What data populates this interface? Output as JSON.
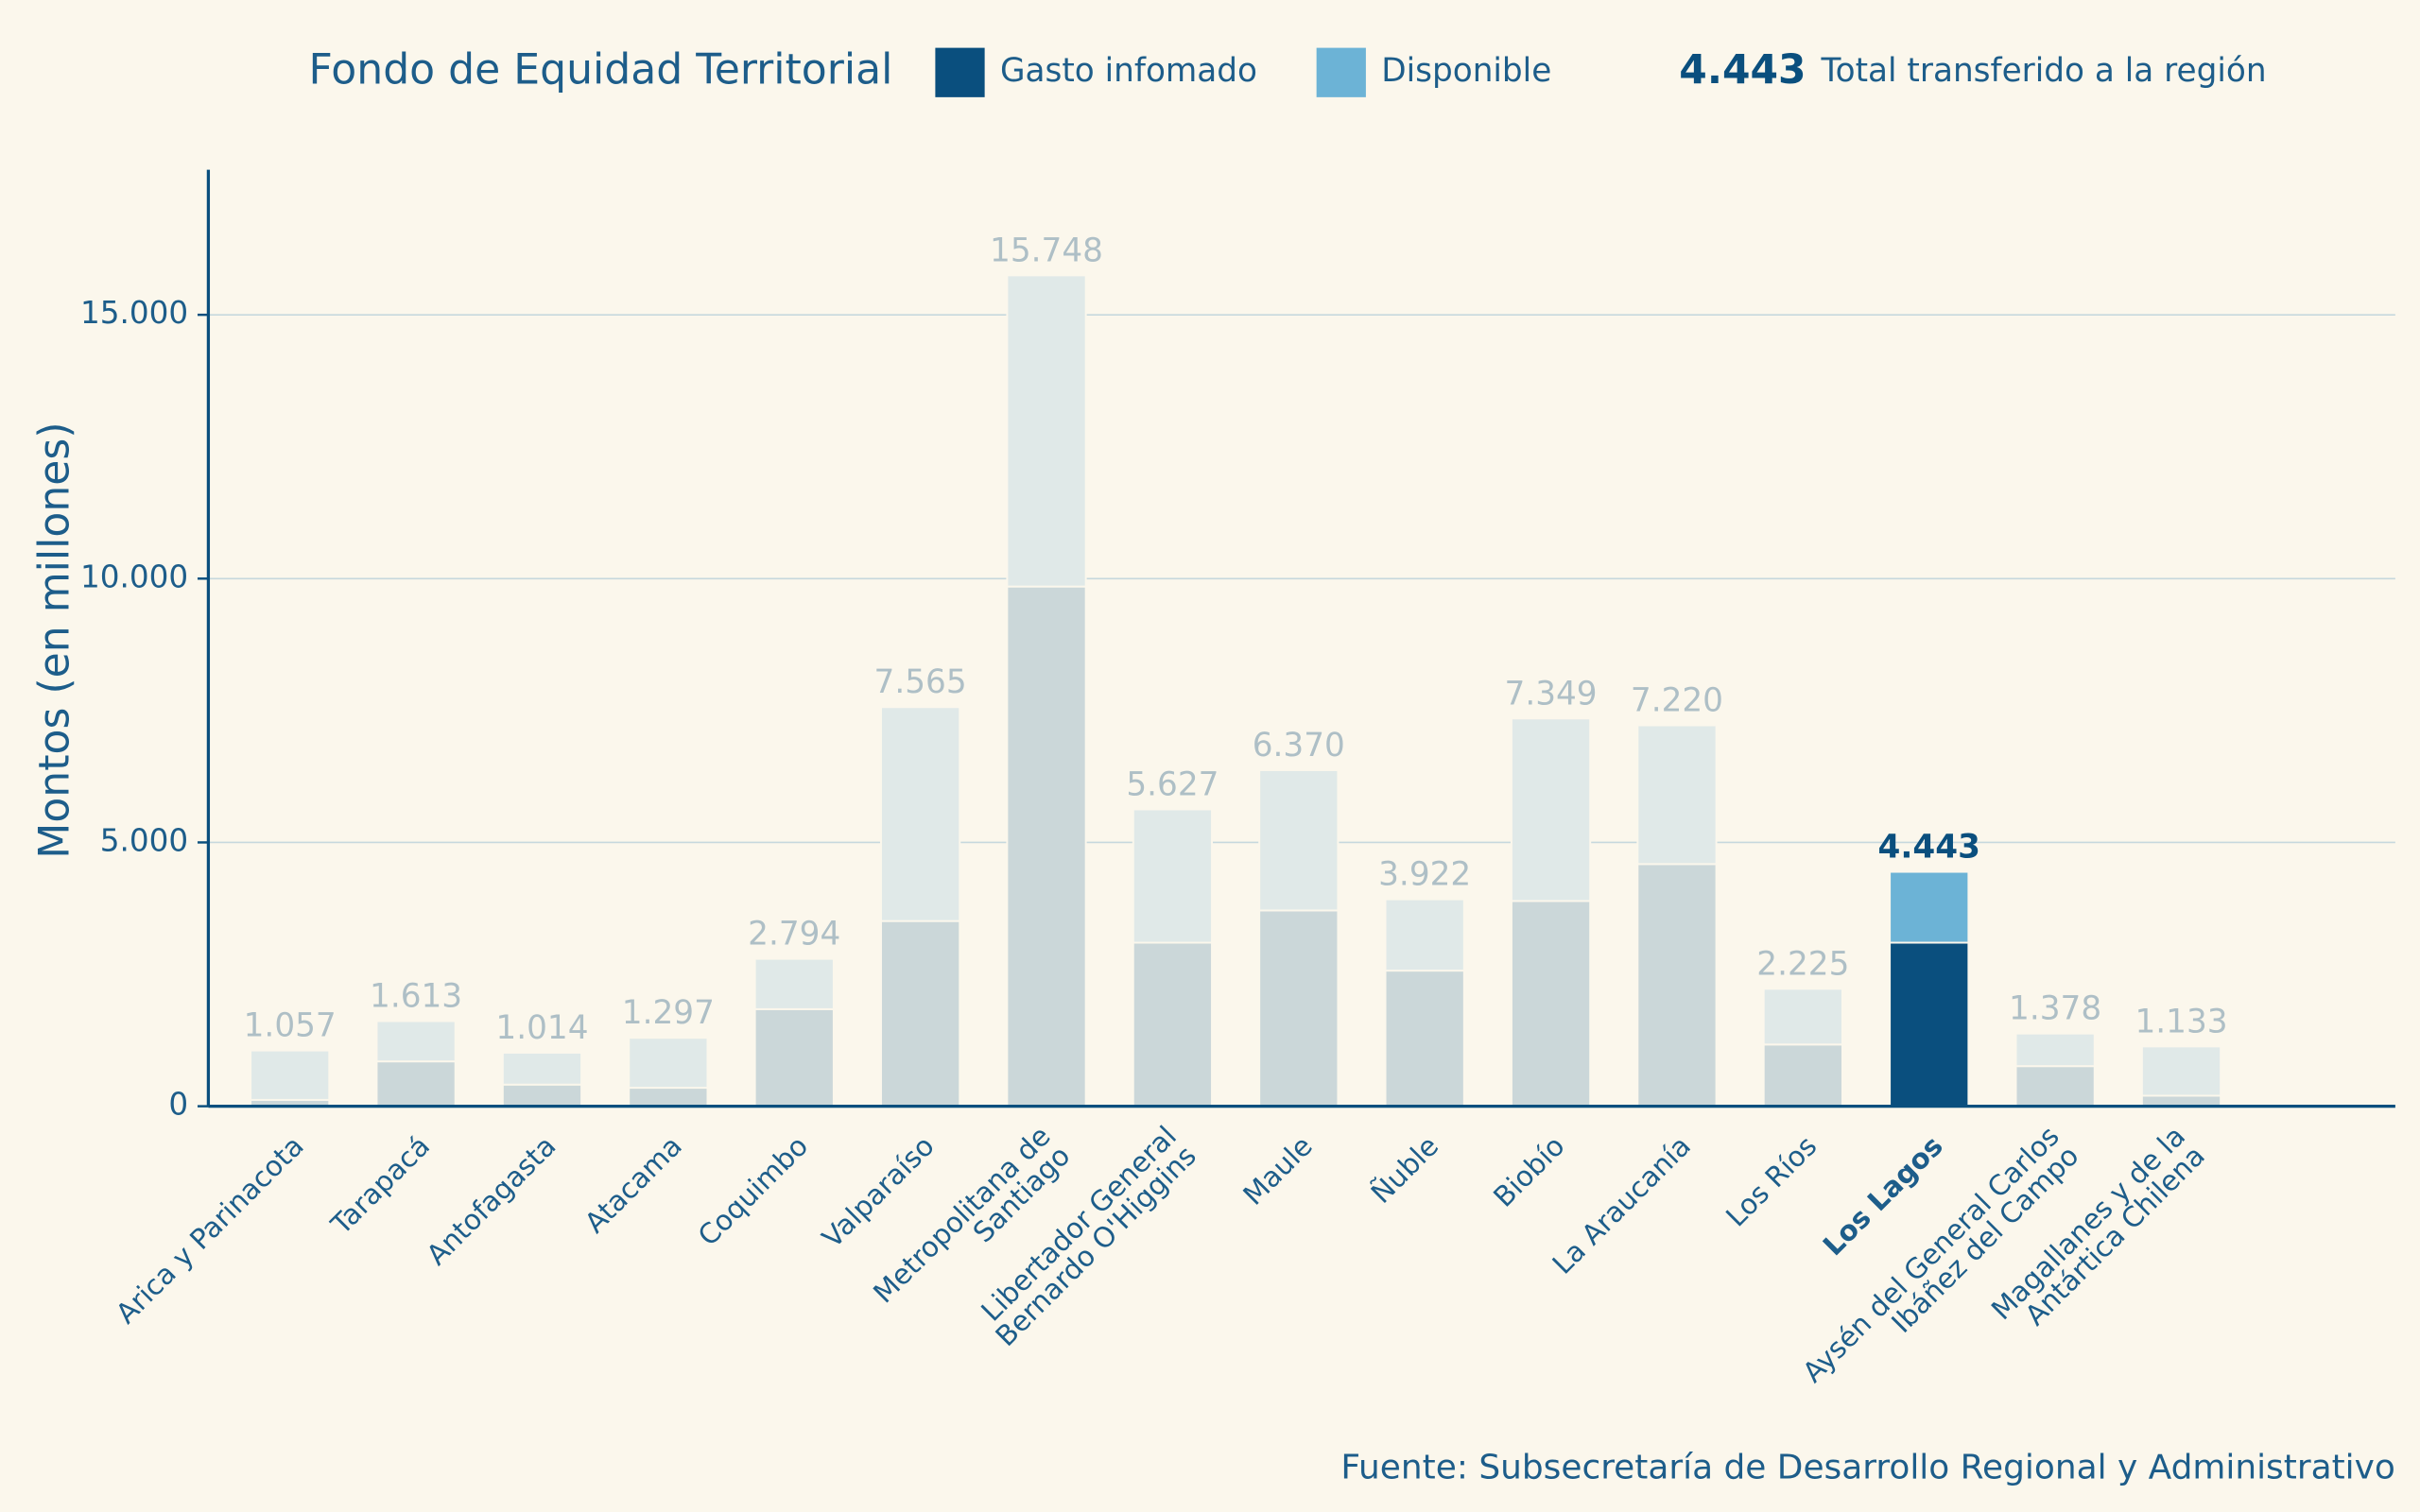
{
  "chart_data": {
    "type": "stacked-bar",
    "title": "Fondo de Equidad Territorial",
    "y_label": "Montos (en millones)",
    "source": "Fuente: Subsecretaría de Desarrollo Regional y Administrativo",
    "total_label": "Total transferido a la región",
    "highlight": "Los Lagos",
    "categories": [
      "Arica y Parinacota",
      "Tarapacá",
      "Antofagasta",
      "Atacama",
      "Coquimbo",
      "Valparaíso",
      "Metropolitana de\nSantiago",
      "Libertador General\nBernardo O'Higgins",
      "Maule",
      "Ñuble",
      "Biobío",
      "La Araucanía",
      "Los Ríos",
      "Los Lagos",
      "Aysén del General Carlos\nIbáñez del Campo",
      "Magallanes y de la\nAntártica Chilena"
    ],
    "series": [
      {
        "name": "Gasto infomado",
        "color": "#0a4f7e",
        "muted_color": "#cbd7d9",
        "values": [
          120,
          850,
          410,
          350,
          1840,
          3510,
          9850,
          3100,
          3710,
          2570,
          3890,
          4590,
          1170,
          3100,
          760,
          200
        ]
      },
      {
        "name": "Disponible",
        "color": "#6cb3d6",
        "muted_color": "#e0e9e8",
        "values": [
          937,
          763,
          604,
          947,
          954,
          4055,
          5898,
          2527,
          2660,
          1352,
          3459,
          2630,
          1055,
          1343,
          618,
          933
        ]
      }
    ],
    "totals": {
      "values": [
        1057,
        1613,
        1014,
        1297,
        2794,
        7565,
        15748,
        5627,
        6370,
        3922,
        7349,
        7220,
        2225,
        4443,
        1378,
        1133
      ],
      "value_labels": [
        "1.057",
        "1.613",
        "1.014",
        "1.297",
        "2.794",
        "7.565",
        "15.748",
        "5.627",
        "6.370",
        "3.922",
        "7.349",
        "7.220",
        "2.225",
        "4.443",
        "1.378",
        "1.133"
      ]
    },
    "ylim": [
      0,
      17750
    ],
    "yticks": [
      0,
      {
        "value": 5000,
        "label": "5.000"
      },
      {
        "value": 10000,
        "label": "10.000"
      },
      {
        "value": 15000,
        "label": "15.000"
      }
    ],
    "grid": true
  }
}
